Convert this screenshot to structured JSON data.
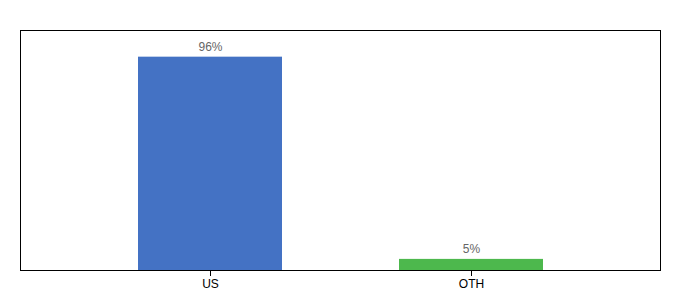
{
  "chart_data": {
    "type": "bar",
    "categories": [
      "US",
      "OTH"
    ],
    "values": [
      96,
      5
    ],
    "value_labels": [
      "96%",
      "5%"
    ],
    "colors": [
      "#4472c4",
      "#4db84d"
    ],
    "ylim": [
      0,
      108
    ],
    "data_labels": true,
    "tick_labels": "x"
  }
}
